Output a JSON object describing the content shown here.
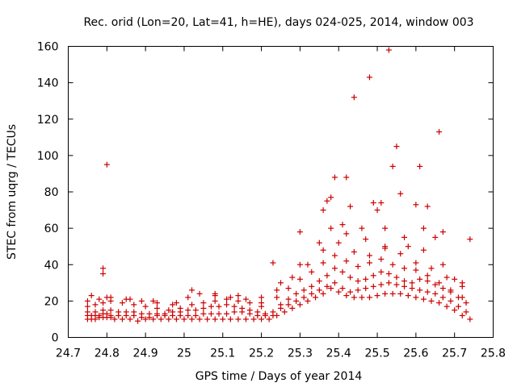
{
  "chart_data": {
    "type": "scatter",
    "title": "Rec. orid (Lon=20, Lat=41, h=HE), days 024-025, 2014, window 003",
    "xlabel": "GPS time / Days of year 2014",
    "ylabel": "STEC from uqrg / TECUs",
    "xlim": [
      24.7,
      25.8
    ],
    "ylim": [
      0,
      160
    ],
    "xticks": [
      "24.7",
      "24.8",
      "24.9",
      "25",
      "25.1",
      "25.2",
      "25.3",
      "25.4",
      "25.5",
      "25.6",
      "25.7",
      "25.8"
    ],
    "yticks": [
      "0",
      "20",
      "40",
      "60",
      "80",
      "100",
      "120",
      "140",
      "160"
    ],
    "grid": false,
    "legend": "none",
    "marker": "plus",
    "color": "#cc0000",
    "series": [
      {
        "x": [
          24.75,
          24.76,
          24.77,
          24.78,
          24.79,
          24.8,
          24.81,
          24.82,
          24.84,
          24.86,
          24.88,
          24.9,
          24.92,
          24.94,
          24.96,
          24.98,
          25.0,
          25.02,
          25.04,
          25.06,
          25.08,
          25.1,
          25.12,
          25.14,
          25.16,
          25.18,
          25.2,
          25.22,
          25.24,
          25.26,
          25.28,
          25.3,
          25.32,
          25.34,
          25.36,
          25.38,
          25.4,
          25.42,
          25.44,
          25.46,
          25.48,
          25.5,
          25.52,
          25.54,
          25.56,
          25.58,
          25.6,
          25.62,
          25.64,
          25.66,
          25.68,
          25.7,
          25.72,
          25.74
        ],
        "y": [
          10,
          10,
          10,
          11,
          11,
          11,
          11,
          10,
          10,
          10,
          9,
          10,
          10,
          10,
          10,
          10,
          10,
          10,
          10,
          10,
          10,
          10,
          10,
          10,
          10,
          10,
          10,
          10,
          12,
          14,
          16,
          18,
          20,
          22,
          24,
          27,
          25,
          23,
          22,
          22,
          22,
          23,
          24,
          24,
          24,
          23,
          22,
          21,
          20,
          19,
          17,
          15,
          12,
          10
        ]
      },
      {
        "x": [
          24.75,
          24.76,
          24.77,
          24.78,
          24.79,
          24.8,
          24.81,
          24.83,
          24.85,
          24.87,
          24.89,
          24.91,
          24.93,
          24.95,
          24.97,
          24.99,
          25.01,
          25.03,
          25.05,
          25.07,
          25.09,
          25.11,
          25.13,
          25.15,
          25.17,
          25.19,
          25.21,
          25.23,
          25.25,
          25.27,
          25.29,
          25.31,
          25.33,
          25.35,
          25.37,
          25.39,
          25.41,
          25.43,
          25.45,
          25.47,
          25.49,
          25.51,
          25.53,
          25.55,
          25.57,
          25.59,
          25.61,
          25.63,
          25.65,
          25.67,
          25.69,
          25.71,
          25.73
        ],
        "y": [
          12,
          12,
          12,
          12,
          13,
          13,
          12,
          12,
          12,
          12,
          11,
          11,
          12,
          12,
          12,
          12,
          12,
          12,
          13,
          13,
          13,
          13,
          14,
          14,
          13,
          12,
          12,
          12,
          16,
          18,
          20,
          22,
          24,
          26,
          28,
          30,
          27,
          25,
          26,
          27,
          28,
          29,
          30,
          29,
          28,
          27,
          26,
          25,
          24,
          22,
          20,
          17,
          14
        ]
      },
      {
        "x": [
          24.75,
          24.77,
          24.79,
          24.81,
          24.83,
          24.85,
          24.87,
          24.89,
          24.91,
          24.93,
          24.95,
          24.97,
          24.99,
          25.01,
          25.03,
          25.05,
          25.07,
          25.09,
          25.11,
          25.13,
          25.15,
          25.17,
          25.19,
          25.21,
          25.23,
          25.25,
          25.27,
          25.29,
          25.31,
          25.33,
          25.35,
          25.37,
          25.39,
          25.41,
          25.43,
          25.45,
          25.47,
          25.49,
          25.51,
          25.53,
          25.55,
          25.57,
          25.59,
          25.61,
          25.63,
          25.65,
          25.67,
          25.69,
          25.71,
          25.73
        ],
        "y": [
          14,
          14,
          15,
          15,
          14,
          14,
          14,
          13,
          13,
          13,
          13,
          14,
          14,
          15,
          15,
          16,
          17,
          17,
          18,
          17,
          16,
          15,
          14,
          13,
          14,
          18,
          21,
          24,
          26,
          28,
          31,
          34,
          38,
          36,
          33,
          31,
          32,
          34,
          36,
          35,
          33,
          31,
          30,
          32,
          31,
          29,
          27,
          25,
          22,
          19
        ]
      },
      {
        "x": [
          24.75,
          24.77,
          24.79,
          24.81,
          24.84,
          24.87,
          24.9,
          24.93,
          24.96,
          24.99,
          25.02,
          25.05,
          25.08,
          25.11,
          25.14,
          25.17,
          25.2,
          25.24,
          25.27,
          25.3,
          25.33,
          25.36,
          25.39,
          25.42,
          25.45,
          25.48,
          25.51,
          25.54,
          25.57,
          25.6,
          25.63,
          25.66,
          25.69,
          25.72
        ],
        "y": [
          17,
          18,
          19,
          20,
          19,
          18,
          17,
          16,
          15,
          16,
          18,
          19,
          20,
          21,
          20,
          19,
          17,
          22,
          27,
          32,
          36,
          41,
          45,
          42,
          39,
          41,
          43,
          40,
          38,
          37,
          34,
          30,
          26,
          22
        ]
      },
      {
        "x": [
          24.75,
          24.78,
          24.81,
          24.85,
          24.89,
          24.93,
          24.97,
          25.01,
          25.04,
          25.08,
          25.12,
          25.16,
          25.2,
          25.24,
          25.28,
          25.32,
          25.36,
          25.4,
          25.44,
          25.48,
          25.52,
          25.56,
          25.6,
          25.64,
          25.68,
          25.72
        ],
        "y": [
          20,
          21,
          22,
          21,
          20,
          19,
          18,
          22,
          24,
          23,
          22,
          21,
          19,
          26,
          33,
          40,
          48,
          52,
          47,
          45,
          49,
          46,
          41,
          38,
          33,
          28
        ]
      },
      {
        "x": [
          24.76,
          24.8,
          24.86,
          24.92,
          24.98,
          25.02,
          25.08,
          25.14,
          25.2,
          25.25,
          25.3,
          25.35,
          25.38,
          25.42,
          25.47,
          25.52,
          25.57,
          25.62,
          25.67,
          25.72
        ],
        "y": [
          23,
          22,
          21,
          20,
          19,
          26,
          24,
          23,
          22,
          30,
          40,
          52,
          60,
          57,
          54,
          60,
          55,
          48,
          40,
          30
        ]
      },
      {
        "x": [
          24.79,
          24.79,
          24.8,
          25.23,
          25.3,
          25.36,
          25.37,
          25.38,
          25.39,
          25.41,
          25.42,
          25.43,
          25.44,
          25.46,
          25.48,
          25.49,
          25.5,
          25.51,
          25.52,
          25.53,
          25.54,
          25.55,
          25.56,
          25.58,
          25.6,
          25.61,
          25.62,
          25.63,
          25.65,
          25.66,
          25.67,
          25.7,
          25.74
        ],
        "y": [
          38,
          35,
          95,
          41,
          58,
          70,
          75,
          77,
          88,
          62,
          88,
          72,
          132,
          60,
          143,
          74,
          70,
          74,
          50,
          158,
          94,
          105,
          79,
          50,
          73,
          94,
          60,
          72,
          55,
          113,
          58,
          32,
          54
        ]
      }
    ]
  }
}
